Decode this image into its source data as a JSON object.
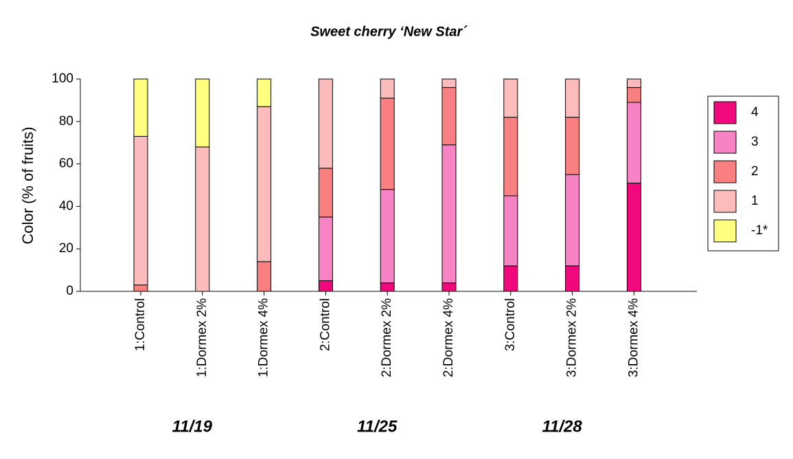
{
  "chart_data": {
    "type": "stacked_bar",
    "title": "Sweet cherry ‘New Star´",
    "y_label": "Color (% of fruits)",
    "categories": [
      "1:Control",
      "1:Dormex  2%",
      "1:Dormex  4%",
      "2:Control",
      "2:Dormex  2%",
      "2:Dormex  4%",
      "3:Control",
      "3:Dormex  2%",
      "3:Dormex  4%"
    ],
    "groups": [
      "11/19",
      "11/25",
      "11/28"
    ],
    "series": [
      {
        "name": "4",
        "color": "#f0087c",
        "values": [
          0,
          0,
          0,
          5,
          4,
          4,
          12,
          12,
          51
        ]
      },
      {
        "name": "3",
        "color": "#f783c4",
        "values": [
          0,
          0,
          0,
          30,
          44,
          65,
          33,
          43,
          38
        ]
      },
      {
        "name": "2",
        "color": "#f98080",
        "values": [
          3,
          0,
          14,
          23,
          43,
          27,
          37,
          27,
          7
        ]
      },
      {
        "name": "1",
        "color": "#fdbcbc",
        "values": [
          70,
          68,
          73,
          42,
          9,
          4,
          18,
          18,
          4
        ]
      },
      {
        "name": "-1*",
        "color": "#ffff80",
        "values": [
          27,
          32,
          13,
          0,
          0,
          0,
          0,
          0,
          0
        ]
      }
    ],
    "ylim": [
      0,
      100
    ],
    "yticks": [
      0,
      20,
      40,
      60,
      80,
      100
    ],
    "grid": false,
    "legend": "right"
  }
}
